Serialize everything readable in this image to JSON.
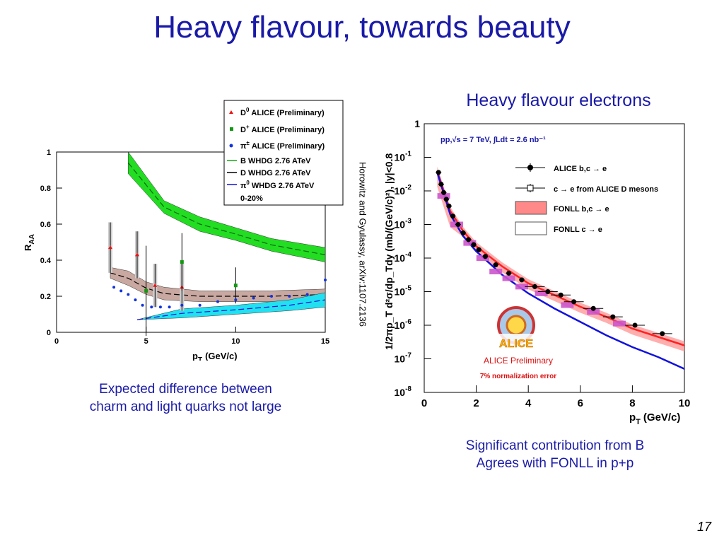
{
  "slide": {
    "title": "Heavy flavour, towards beauty",
    "left_caption_line1": "Expected difference between",
    "left_caption_line2": "charm and light quarks not large",
    "right_title": "Heavy flavour electrons",
    "right_caption_line1": "Significant contribution from B",
    "right_caption_line2": "Agrees with FONLL in p+p",
    "reference": "Horowitz and Gyulassy, arXiv:1107.2136",
    "page_number": "17"
  },
  "chart_data": [
    {
      "type": "scatter",
      "xlabel": "p",
      "xlabel_sub": "T",
      "xlabel_unit": "(GeV/c)",
      "ylabel": "R",
      "ylabel_sub": "AA",
      "xlim": [
        0,
        15
      ],
      "ylim": [
        0,
        1
      ],
      "x_ticks": [
        "0",
        "5",
        "10",
        "15"
      ],
      "y_ticks": [
        "0",
        "0.2",
        "0.4",
        "0.6",
        "0.8",
        "1"
      ],
      "legend": {
        "d0": "ALICE (Preliminary)",
        "dplus": "ALICE (Preliminary)",
        "pi": "ALICE (Preliminary)",
        "b_whdg": "B WHDG 2.76 ATeV",
        "d_whdg": "D WHDG 2.76 ATeV",
        "pi_whdg": "WHDG 2.76 ATeV",
        "centrality": "0-20%"
      },
      "colors": {
        "d0": "#ee1111",
        "dplus": "#119911",
        "pi": "#1133dd",
        "b_band": "#22dd22",
        "d_band": "#c8a8a0",
        "pi_band": "#22e0f0"
      },
      "series": [
        {
          "name": "D0",
          "points": [
            [
              3,
              0.47
            ],
            [
              4.5,
              0.43
            ],
            [
              5.5,
              0.26
            ],
            [
              7,
              0.25
            ]
          ],
          "err": [
            0.14,
            0.13,
            0.12,
            0.13
          ]
        },
        {
          "name": "D+",
          "points": [
            [
              5,
              0.23
            ],
            [
              7,
              0.39
            ],
            [
              10,
              0.26
            ]
          ],
          "err": [
            0.25,
            0.16,
            0.1
          ]
        },
        {
          "name": "pi+-",
          "points": [
            [
              3.2,
              0.25
            ],
            [
              3.6,
              0.23
            ],
            [
              4,
              0.21
            ],
            [
              4.4,
              0.18
            ],
            [
              4.8,
              0.15
            ],
            [
              5.3,
              0.14
            ],
            [
              5.8,
              0.14
            ],
            [
              6.3,
              0.14
            ],
            [
              7,
              0.15
            ],
            [
              8,
              0.15
            ],
            [
              9,
              0.17
            ],
            [
              10,
              0.18
            ],
            [
              11,
              0.19
            ],
            [
              12,
              0.2
            ],
            [
              13,
              0.2
            ],
            [
              14,
              0.21
            ],
            [
              15,
              0.29
            ]
          ]
        }
      ],
      "bands": {
        "B": {
          "x": [
            4,
            6,
            8,
            10,
            12,
            15
          ],
          "lo": [
            0.88,
            0.66,
            0.56,
            0.51,
            0.45,
            0.39
          ],
          "hi": [
            1.0,
            0.73,
            0.64,
            0.58,
            0.52,
            0.47
          ]
        },
        "D": {
          "x": [
            3,
            4,
            5,
            6,
            8,
            10,
            12,
            15
          ],
          "lo": [
            0.3,
            0.26,
            0.21,
            0.18,
            0.17,
            0.17,
            0.17,
            0.18
          ],
          "hi": [
            0.36,
            0.34,
            0.28,
            0.25,
            0.23,
            0.23,
            0.23,
            0.24
          ]
        },
        "pi": {
          "x": [
            4.5,
            7,
            10,
            13,
            15
          ],
          "lo": [
            0.07,
            0.08,
            0.1,
            0.12,
            0.14
          ],
          "hi": [
            0.07,
            0.13,
            0.15,
            0.18,
            0.22
          ]
        }
      }
    },
    {
      "type": "scatter",
      "log_y": true,
      "xlim": [
        0,
        10
      ],
      "ylim_exp": [
        -8,
        0
      ],
      "x_ticks": [
        "0",
        "2",
        "4",
        "6",
        "8",
        "10"
      ],
      "y_ticks": [
        "1",
        "10",
        "10",
        "10",
        "10",
        "10",
        "10",
        "10",
        "10"
      ],
      "y_tick_exps": [
        "",
        "-1",
        "-2",
        "-3",
        "-4",
        "-5",
        "-6",
        "-7",
        "-8"
      ],
      "xlabel": "p",
      "xlabel_sub": "T",
      "xlabel_unit": "(GeV/c)",
      "ylabel": "1/2πp_T d²σ/dp_Tdy (mb/(GeV/c)²), |y|<0.8",
      "annotation": "pp,√s = 7 TeV, ∫Ldt = 2.6 nb⁻¹",
      "legend": {
        "alice_bc": "ALICE b,c → e",
        "c_from_d": "c → e from ALICE D mesons",
        "fonll_bc": "FONLL b,c → e",
        "fonll_c": "FONLL c → e"
      },
      "logo_text": "ALICE",
      "preliminary": "ALICE Preliminary",
      "norm_error": "7% normalization error",
      "colors": {
        "alice_bc": "#000000",
        "c_from_d": "#cc55cc",
        "fonll_bc": "#ff2222",
        "fonll_c": "#1111dd"
      },
      "alice_bc_points": [
        [
          0.55,
          -1.45
        ],
        [
          0.65,
          -1.8
        ],
        [
          0.75,
          -2.05
        ],
        [
          0.85,
          -2.25
        ],
        [
          0.95,
          -2.45
        ],
        [
          1.1,
          -2.75
        ],
        [
          1.3,
          -3.0
        ],
        [
          1.5,
          -3.25
        ],
        [
          1.7,
          -3.45
        ],
        [
          1.9,
          -3.6
        ],
        [
          2.1,
          -3.75
        ],
        [
          2.35,
          -3.95
        ],
        [
          2.75,
          -4.2
        ],
        [
          3.25,
          -4.45
        ],
        [
          3.75,
          -4.65
        ],
        [
          4.25,
          -4.85
        ],
        [
          4.75,
          -5.0
        ],
        [
          5.25,
          -5.1
        ],
        [
          5.75,
          -5.3
        ],
        [
          6.5,
          -5.5
        ],
        [
          7.25,
          -5.75
        ],
        [
          8.1,
          -6.0
        ],
        [
          9.15,
          -6.25
        ]
      ],
      "c_from_d_points": [
        [
          0.75,
          -2.15
        ],
        [
          1.25,
          -3.0
        ],
        [
          1.75,
          -3.55
        ],
        [
          2.25,
          -4.0
        ],
        [
          2.75,
          -4.4
        ],
        [
          3.25,
          -4.6
        ],
        [
          3.75,
          -4.85
        ],
        [
          4.5,
          -5.05
        ],
        [
          5.5,
          -5.4
        ],
        [
          6.5,
          -5.6
        ],
        [
          7.5,
          -5.95
        ]
      ],
      "fonll_bc_x": [
        0.5,
        1,
        1.5,
        2,
        3,
        4,
        5,
        6,
        7,
        8,
        9,
        10
      ],
      "fonll_bc_y": [
        -1.4,
        -2.6,
        -3.2,
        -3.65,
        -4.25,
        -4.75,
        -5.1,
        -5.45,
        -5.75,
        -6.1,
        -6.35,
        -6.6
      ],
      "fonll_c_x": [
        0.5,
        1,
        1.5,
        2,
        3,
        4,
        5,
        6,
        7,
        8,
        9,
        10
      ],
      "fonll_c_y": [
        -1.45,
        -2.7,
        -3.35,
        -3.8,
        -4.5,
        -5.05,
        -5.5,
        -5.9,
        -6.3,
        -6.65,
        -6.95,
        -7.3
      ]
    }
  ]
}
